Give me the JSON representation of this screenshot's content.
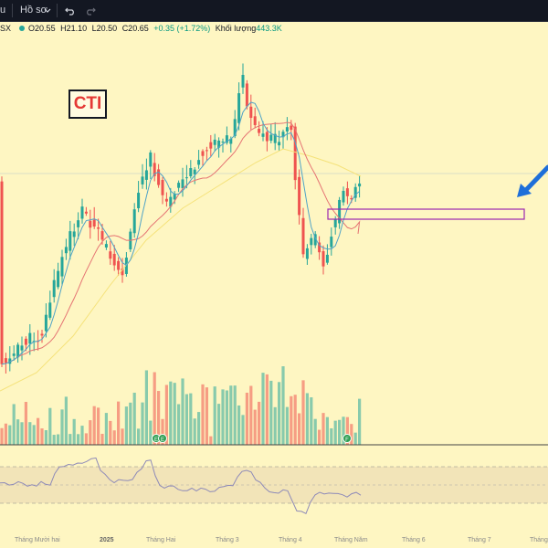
{
  "toolbar": {
    "partial_left_label": "u",
    "template_label": "Hồ sơ",
    "undo_icon": "undo-icon",
    "redo_icon": "redo-icon"
  },
  "legend": {
    "exchange_suffix": "SX",
    "open": "O20.55",
    "high": "H21.10",
    "low": "L20.50",
    "close": "C20.65",
    "change": "+0.35 (+1.72%)",
    "volume_label": "Khối lượng",
    "volume_value": "443.3K"
  },
  "annotation": {
    "ticker_badge": "CTI",
    "box_color": "#9c27b0",
    "arrow_color": "#1e6fd9"
  },
  "colors": {
    "up": "#26a69a",
    "down": "#ef5350",
    "ma_fast": "#4fa3c7",
    "ma_mid": "#e57373",
    "ma_slow": "#f5e27a",
    "rsi_line": "#8e8ab8",
    "rsi_band": "#f2e4b8",
    "background": "#fef6c2"
  },
  "event_markers": [
    "E",
    "E",
    "F"
  ],
  "x_axis": {
    "labels": [
      "Tháng Mười hai",
      "2025",
      "Tháng Hai",
      "Tháng 3",
      "Tháng 4",
      "Tháng Năm",
      "Tháng 6",
      "Tháng 7",
      "Tháng"
    ]
  }
}
